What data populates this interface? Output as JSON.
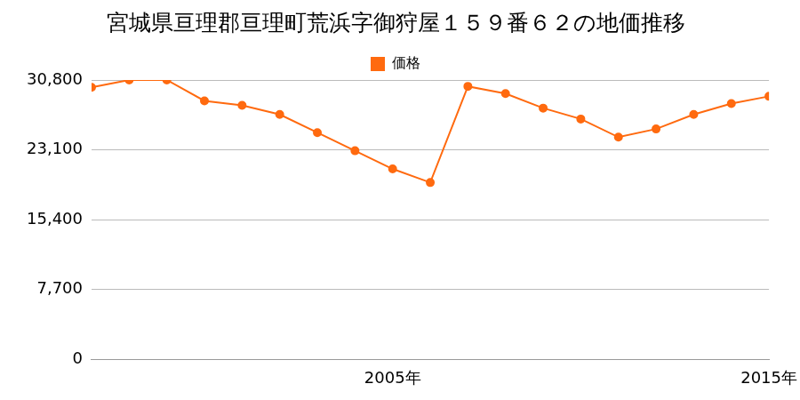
{
  "chart_data": {
    "type": "line",
    "title": "宮城県亘理郡亘理町荒浜字御狩屋１５９番６２の地価推移",
    "categories": [
      null,
      null,
      null,
      null,
      null,
      null,
      null,
      null,
      "2005年",
      null,
      null,
      null,
      null,
      null,
      null,
      null,
      null,
      null,
      "2015年"
    ],
    "series": [
      {
        "name": "価格",
        "color": "#ff6a0f",
        "marker": "circle",
        "values": [
          30000,
          30800,
          30800,
          28500,
          28000,
          27000,
          25000,
          23000,
          21000,
          19500,
          30100,
          29300,
          27700,
          26500,
          24500,
          25400,
          27000,
          28200,
          29000
        ]
      }
    ],
    "ylim": [
      0,
      30800
    ],
    "yticks": [
      0,
      {
        "value": 7700,
        "label": "7,700"
      },
      {
        "value": 15400,
        "label": "15,400"
      },
      {
        "value": 23100,
        "label": "23,100"
      },
      {
        "value": 30800,
        "label": "30,800"
      }
    ],
    "grid": true,
    "legend": "top"
  }
}
